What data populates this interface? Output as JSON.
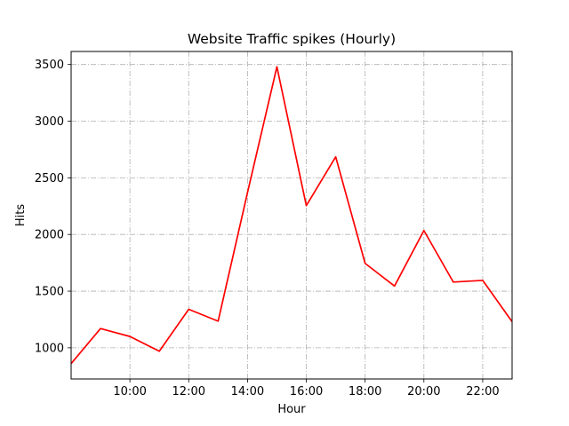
{
  "chart_data": {
    "type": "line",
    "title": "Website Traffic spikes (Hourly)",
    "xlabel": "Hour",
    "ylabel": "Hits",
    "x": [
      "08:00",
      "09:00",
      "10:00",
      "11:00",
      "12:00",
      "13:00",
      "14:00",
      "15:00",
      "16:00",
      "17:00",
      "18:00",
      "19:00",
      "20:00",
      "21:00",
      "22:00",
      "23:00"
    ],
    "series": [
      {
        "values": [
          860,
          1170,
          1100,
          970,
          1340,
          1235,
          2370,
          3480,
          2255,
          2685,
          1745,
          1545,
          2035,
          1580,
          1595,
          1230
        ],
        "color": "#ff0000"
      }
    ],
    "x_ticks": [
      "10:00",
      "12:00",
      "14:00",
      "16:00",
      "18:00",
      "20:00",
      "22:00"
    ],
    "y_ticks": [
      1000,
      1500,
      2000,
      2500,
      3000,
      3500
    ],
    "ylim": [
      725,
      3615
    ],
    "grid": true,
    "legend": "none"
  }
}
